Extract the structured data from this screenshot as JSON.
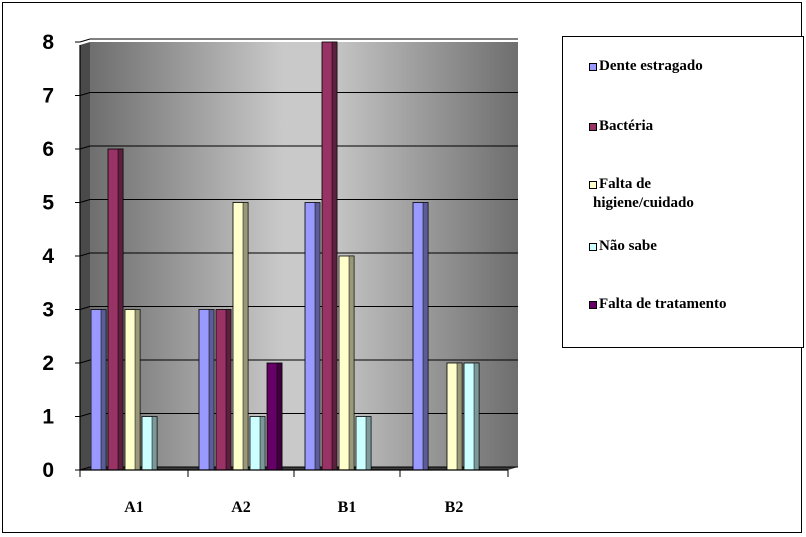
{
  "chart_data": {
    "type": "bar",
    "title": "",
    "xlabel": "",
    "ylabel": "",
    "ylim": [
      0,
      8
    ],
    "yticks": [
      "0",
      "1",
      "2",
      "3",
      "4",
      "5",
      "6",
      "7",
      "8"
    ],
    "categories": [
      "A1",
      "A2",
      "B1",
      "B2"
    ],
    "grid": true,
    "legend_position": "right",
    "series": [
      {
        "name": "Dente estragado",
        "color": "#9999ff",
        "values": [
          3,
          3,
          5,
          5
        ]
      },
      {
        "name": "Bactéria",
        "color": "#993366",
        "values": [
          6,
          3,
          8,
          0
        ]
      },
      {
        "name": "Falta de higiene/cuidado",
        "color": "#ffffcc",
        "values": [
          3,
          5,
          4,
          2
        ]
      },
      {
        "name": "Não sabe",
        "color": "#ccffff",
        "values": [
          1,
          1,
          1,
          2
        ]
      },
      {
        "name": "Falta de tratamento",
        "color": "#660066",
        "values": [
          0,
          2,
          0,
          0
        ]
      }
    ]
  },
  "legend": {
    "items": [
      {
        "label_line1": "Dente estragado",
        "label_line2": ""
      },
      {
        "label_line1": "Bactéria",
        "label_line2": ""
      },
      {
        "label_line1": "Falta de",
        "label_line2": "higiene/cuidado"
      },
      {
        "label_line1": "Não sabe",
        "label_line2": ""
      },
      {
        "label_line1": "Falta de tratamento",
        "label_line2": ""
      }
    ]
  }
}
